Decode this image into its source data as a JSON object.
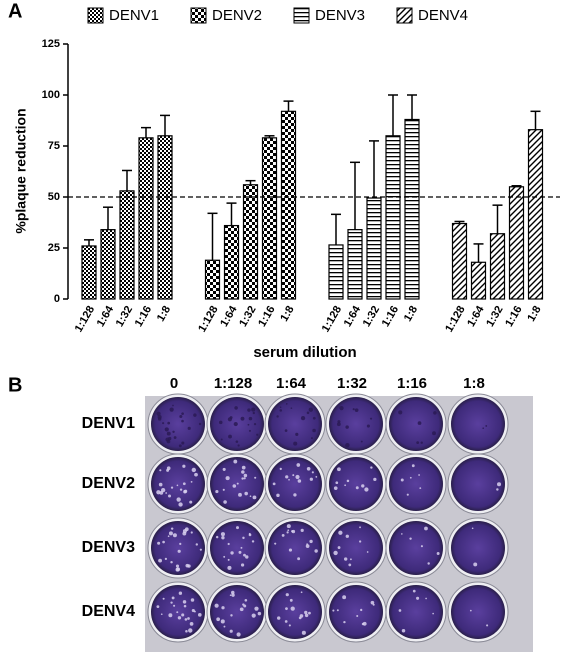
{
  "panel_labels": [
    "A",
    "B"
  ],
  "chart_data": {
    "type": "bar",
    "y_label": "%plaque reduction",
    "x_label": "serum dilution",
    "categories": [
      "1:128",
      "1:64",
      "1:32",
      "1:16",
      "1:8"
    ],
    "series": [
      {
        "name": "DENV1",
        "color": "#000000",
        "pattern": "fine-check",
        "values": [
          26,
          34,
          53,
          79,
          80
        ],
        "errors": [
          3,
          11,
          10,
          5,
          10
        ]
      },
      {
        "name": "DENV2",
        "color": "#000000",
        "pattern": "checker",
        "values": [
          19,
          36,
          56,
          79,
          92
        ],
        "errors": [
          23,
          11,
          2,
          1,
          5
        ]
      },
      {
        "name": "DENV3",
        "color": "#000000",
        "pattern": "horizontal",
        "values": [
          26.5,
          34,
          49.5,
          80,
          88
        ],
        "errors": [
          15,
          33,
          28,
          20,
          12
        ]
      },
      {
        "name": "DENV4",
        "color": "#000000",
        "pattern": "diagonal",
        "values": [
          37,
          18,
          32,
          55,
          83
        ],
        "errors": [
          1,
          9,
          14,
          0.5,
          9
        ]
      }
    ],
    "ylim": [
      0,
      125
    ],
    "yticks": [
      0,
      25,
      50,
      75,
      100,
      125
    ],
    "reference_line": 50,
    "legend": "top"
  },
  "plates": {
    "columns": [
      "0",
      "1:128",
      "1:64",
      "1:32",
      "1:16",
      "1:8"
    ],
    "rows": [
      "DENV1",
      "DENV2",
      "DENV3",
      "DENV4"
    ]
  }
}
